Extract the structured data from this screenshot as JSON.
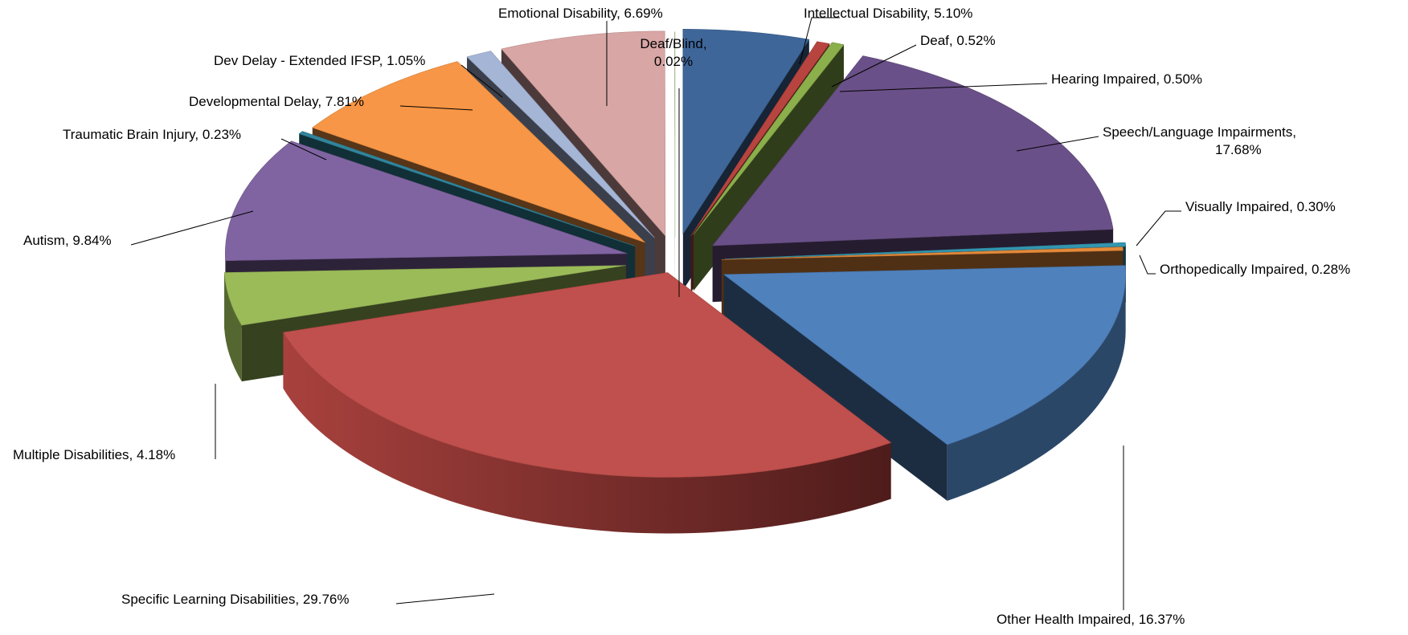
{
  "chart_data": {
    "type": "pie",
    "style": "3D exploded pie",
    "title": "",
    "slices": [
      {
        "label": "Intellectual Disability",
        "value": 5.1,
        "value_label": "5.10%",
        "color": "#3E6699"
      },
      {
        "label": "Deaf",
        "value": 0.52,
        "value_label": "0.52%",
        "color": "#B8443F"
      },
      {
        "label": "Hearing Impaired",
        "value": 0.5,
        "value_label": "0.50%",
        "color": "#8AAF4B"
      },
      {
        "label": "Speech/Language Impairments",
        "value": 17.68,
        "value_label": "17.68%",
        "color": "#6A5088"
      },
      {
        "label": "Visually Impaired",
        "value": 0.3,
        "value_label": "0.30%",
        "color": "#3396B0"
      },
      {
        "label": "Orthopedically Impaired",
        "value": 0.28,
        "value_label": "0.28%",
        "color": "#E48A3A"
      },
      {
        "label": "Other Health Impaired",
        "value": 16.37,
        "value_label": "16.37%",
        "color": "#4F81BD"
      },
      {
        "label": "Specific Learning Disabilities",
        "value": 29.76,
        "value_label": "29.76%",
        "color": "#C0504D"
      },
      {
        "label": "Multiple Disabilities",
        "value": 4.18,
        "value_label": "4.18%",
        "color": "#9BBB59"
      },
      {
        "label": "Autism",
        "value": 9.84,
        "value_label": "9.84%",
        "color": "#8064A2"
      },
      {
        "label": "Traumatic Brain Injury",
        "value": 0.23,
        "value_label": "0.23%",
        "color": "#31859C"
      },
      {
        "label": "Developmental Delay",
        "value": 7.81,
        "value_label": "7.81%",
        "color": "#F79646"
      },
      {
        "label": "Dev Delay - Extended IFSP",
        "value": 1.05,
        "value_label": "1.05%",
        "color": "#A5B5D6"
      },
      {
        "label": "Emotional Disability",
        "value": 6.69,
        "value_label": "6.69%",
        "color": "#D8A6A5"
      },
      {
        "label": "Deaf/Blind",
        "value": 0.02,
        "value_label": "0.02%",
        "color": "#C8D8A6"
      }
    ]
  }
}
